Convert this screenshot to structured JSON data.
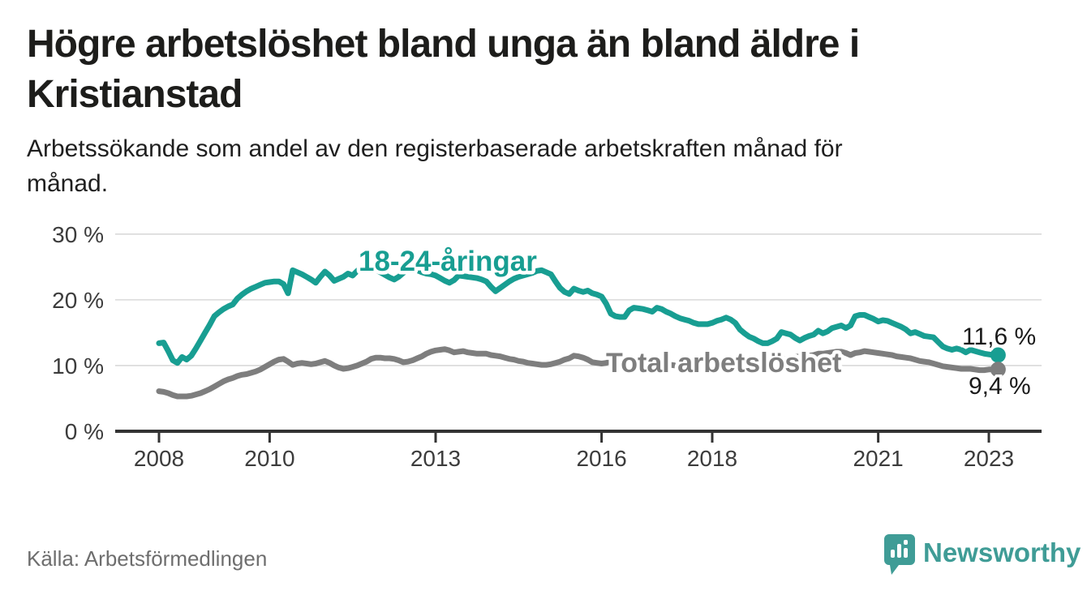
{
  "header": {
    "title_lines": [
      "Högre arbetslöshet bland unga än bland äldre i",
      "Kristianstad"
    ],
    "subtitle_lines": [
      "Arbetssökande som andel av den registerbaserade arbetskraften månad för",
      "månad."
    ]
  },
  "footer": {
    "source": "Källa: Arbetsförmedlingen",
    "brand": "Newsworthy",
    "brand_color": "#3f9c96"
  },
  "chart_data": {
    "type": "line",
    "unit": "%",
    "frequency": "monthly",
    "x_start": "2008-01",
    "x_end": "2023-03",
    "x_tick_labels": [
      "2008",
      "2010",
      "2013",
      "2016",
      "2018",
      "2021",
      "2023"
    ],
    "y_tick_labels": [
      "0 %",
      "10 %",
      "20 %",
      "30 %"
    ],
    "y_ticks": [
      0,
      10,
      20,
      30
    ],
    "ylim": [
      0,
      30
    ],
    "grid": "horizontal",
    "series": [
      {
        "name": "18-24-åringar",
        "color": "#189e92",
        "end_label": "11,6 %",
        "end_value": 11.6,
        "values": [
          13.4,
          13.5,
          12.2,
          10.8,
          10.4,
          11.3,
          10.9,
          11.5,
          12.6,
          13.8,
          15.0,
          16.2,
          17.5,
          18.1,
          18.6,
          19.0,
          19.3,
          20.2,
          20.8,
          21.3,
          21.7,
          22.0,
          22.3,
          22.6,
          22.7,
          22.8,
          22.8,
          22.4,
          21.0,
          24.5,
          24.2,
          23.9,
          23.5,
          23.1,
          22.6,
          23.5,
          24.3,
          23.7,
          22.9,
          23.2,
          23.5,
          24.0,
          23.7,
          24.4,
          25.0,
          25.2,
          24.9,
          24.6,
          24.2,
          23.8,
          23.4,
          23.1,
          23.5,
          24.1,
          24.6,
          24.7,
          24.5,
          24.2,
          24.0,
          23.9,
          23.7,
          23.3,
          22.9,
          22.6,
          23.0,
          23.7,
          23.6,
          23.5,
          23.4,
          23.3,
          23.1,
          22.8,
          22.0,
          21.3,
          21.8,
          22.3,
          22.8,
          23.2,
          23.5,
          23.7,
          23.9,
          24.1,
          24.4,
          24.5,
          24.2,
          23.9,
          22.8,
          21.8,
          21.2,
          20.9,
          21.7,
          21.4,
          21.2,
          21.4,
          21.0,
          20.8,
          20.5,
          19.4,
          17.9,
          17.5,
          17.4,
          17.4,
          18.4,
          18.8,
          18.7,
          18.6,
          18.4,
          18.2,
          18.8,
          18.6,
          18.2,
          17.9,
          17.5,
          17.2,
          17.0,
          16.8,
          16.5,
          16.3,
          16.3,
          16.3,
          16.5,
          16.8,
          17.0,
          17.3,
          17.0,
          16.5,
          15.5,
          14.9,
          14.4,
          14.1,
          13.7,
          13.4,
          13.4,
          13.7,
          14.1,
          15.1,
          14.9,
          14.7,
          14.2,
          13.8,
          14.2,
          14.5,
          14.7,
          15.3,
          14.9,
          15.2,
          15.7,
          15.9,
          16.1,
          15.7,
          16.1,
          17.5,
          17.7,
          17.7,
          17.4,
          17.1,
          16.7,
          16.9,
          16.8,
          16.5,
          16.2,
          15.9,
          15.5,
          14.9,
          15.1,
          14.8,
          14.5,
          14.4,
          14.3,
          13.6,
          12.9,
          12.6,
          12.4,
          12.6,
          12.4,
          12.0,
          12.4,
          12.2,
          12.0,
          11.8,
          11.7,
          11.6,
          11.6
        ]
      },
      {
        "name": "Total arbetslöshet",
        "color": "#7e7e7e",
        "end_label": "9,4 %",
        "end_value": 9.4,
        "values": [
          6.1,
          6.0,
          5.8,
          5.5,
          5.3,
          5.3,
          5.3,
          5.4,
          5.6,
          5.8,
          6.1,
          6.4,
          6.8,
          7.2,
          7.6,
          7.9,
          8.1,
          8.4,
          8.6,
          8.7,
          8.9,
          9.1,
          9.4,
          9.8,
          10.2,
          10.6,
          10.9,
          11.0,
          10.6,
          10.1,
          10.3,
          10.4,
          10.3,
          10.2,
          10.3,
          10.5,
          10.7,
          10.4,
          10.0,
          9.7,
          9.5,
          9.6,
          9.8,
          10.0,
          10.3,
          10.6,
          11.0,
          11.2,
          11.2,
          11.1,
          11.1,
          11.0,
          10.8,
          10.5,
          10.6,
          10.8,
          11.1,
          11.4,
          11.8,
          12.1,
          12.3,
          12.4,
          12.5,
          12.3,
          12.0,
          12.1,
          12.2,
          12.0,
          11.9,
          11.8,
          11.8,
          11.8,
          11.6,
          11.5,
          11.4,
          11.2,
          11.0,
          10.9,
          10.7,
          10.6,
          10.4,
          10.3,
          10.2,
          10.1,
          10.1,
          10.2,
          10.4,
          10.6,
          10.9,
          11.1,
          11.5,
          11.4,
          11.2,
          10.9,
          10.5,
          10.4,
          10.3,
          10.4,
          10.7,
          10.6,
          10.5,
          10.4,
          10.3,
          10.4,
          10.5,
          10.6,
          10.6,
          10.5,
          10.4,
          10.3,
          10.2,
          10.1,
          10.0,
          9.9,
          9.9,
          10.0,
          10.1,
          10.2,
          10.3,
          10.4,
          10.4,
          10.3,
          10.2,
          10.1,
          10.0,
          9.9,
          9.9,
          9.8,
          9.8,
          9.9,
          10.0,
          10.2,
          10.4,
          10.5,
          10.7,
          10.8,
          11.0,
          11.2,
          11.3,
          11.4,
          11.4,
          11.5,
          11.6,
          11.8,
          11.8,
          11.9,
          12.0,
          12.1,
          12.1,
          11.9,
          11.6,
          11.9,
          12.0,
          12.2,
          12.1,
          12.0,
          11.9,
          11.8,
          11.7,
          11.6,
          11.4,
          11.3,
          11.2,
          11.1,
          10.9,
          10.7,
          10.6,
          10.5,
          10.3,
          10.1,
          9.9,
          9.8,
          9.7,
          9.6,
          9.5,
          9.5,
          9.5,
          9.4,
          9.3,
          9.3,
          9.4,
          9.4,
          9.4
        ]
      }
    ]
  }
}
